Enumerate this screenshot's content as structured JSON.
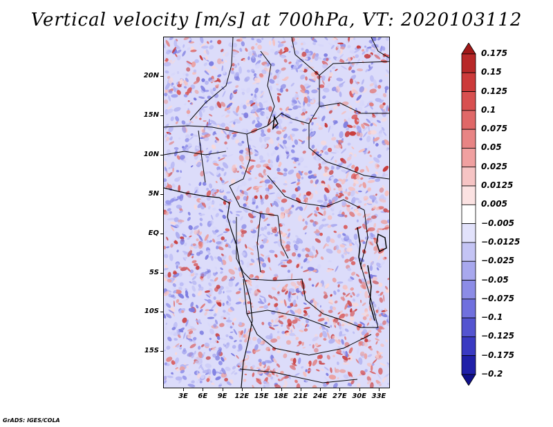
{
  "title": "Vertical velocity [m/s] at 700hPa, VT: 2020103112",
  "credit": "GrADS: IGES/COLA",
  "axes": {
    "lat_labels": [
      "20N",
      "15N",
      "10N",
      "5N",
      "EQ",
      "5S",
      "10S",
      "15S"
    ],
    "lon_labels": [
      "3E",
      "6E",
      "9E",
      "12E",
      "15E",
      "18E",
      "21E",
      "24E",
      "27E",
      "30E",
      "33E"
    ]
  },
  "colorbar": {
    "labels": [
      "0.175",
      "0.15",
      "0.125",
      "0.1",
      "0.075",
      "0.05",
      "0.025",
      "0.0125",
      "0.005",
      "−0.005",
      "−0.0125",
      "−0.025",
      "−0.05",
      "−0.075",
      "−0.1",
      "−0.125",
      "−0.175",
      "−0.2"
    ],
    "colors": [
      "#a01818",
      "#b82828",
      "#cc3a3a",
      "#d85050",
      "#e06868",
      "#e88484",
      "#f0a0a0",
      "#f6c4c4",
      "#fbe2e2",
      "#ffffff",
      "#e2e2fb",
      "#c4c4f4",
      "#a8a8ee",
      "#8c8ce6",
      "#7070de",
      "#5454d0",
      "#3a3ac2",
      "#2020a8",
      "#10108a"
    ]
  }
}
